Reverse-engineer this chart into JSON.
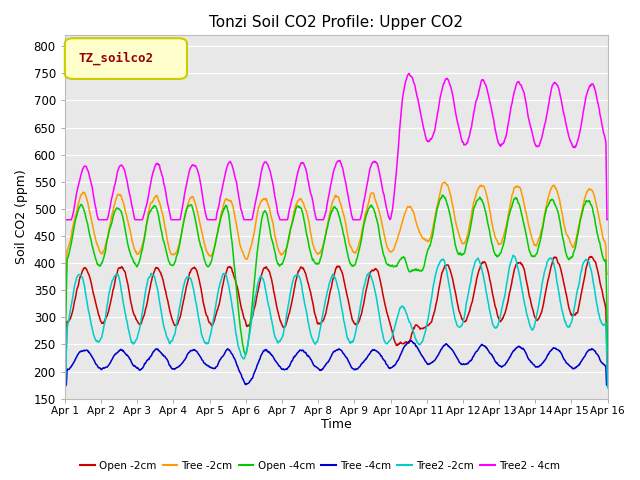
{
  "title": "Tonzi Soil CO2 Profile: Upper CO2",
  "xlabel": "Time",
  "ylabel": "Soil CO2 (ppm)",
  "ylim": [
    150,
    820
  ],
  "yticks": [
    150,
    200,
    250,
    300,
    350,
    400,
    450,
    500,
    550,
    600,
    650,
    700,
    750,
    800
  ],
  "xlim_days": [
    0,
    15
  ],
  "xtick_labels": [
    "Apr 1",
    "Apr 2",
    "Apr 3",
    "Apr 4",
    "Apr 5",
    "Apr 6",
    "Apr 7",
    "Apr 8",
    "Apr 9",
    "Apr 10",
    "Apr 11",
    "Apr 12",
    "Apr 13",
    "Apr 14",
    "Apr 15",
    "Apr 16"
  ],
  "legend_label": "TZ_soilco2",
  "legend_label_color": "#990000",
  "legend_bg": "#ffffcc",
  "legend_border": "#cccc00",
  "plot_bg": "#e8e8e8",
  "grid_color": "#ffffff",
  "colors": {
    "open2cm": "#cc0000",
    "tree2cm": "#ff9900",
    "open4cm": "#00cc00",
    "tree4cm": "#0000cc",
    "tree2_2cm": "#00cccc",
    "tree2_4cm": "#ff00ff"
  },
  "figsize": [
    6.4,
    4.8
  ],
  "dpi": 100
}
